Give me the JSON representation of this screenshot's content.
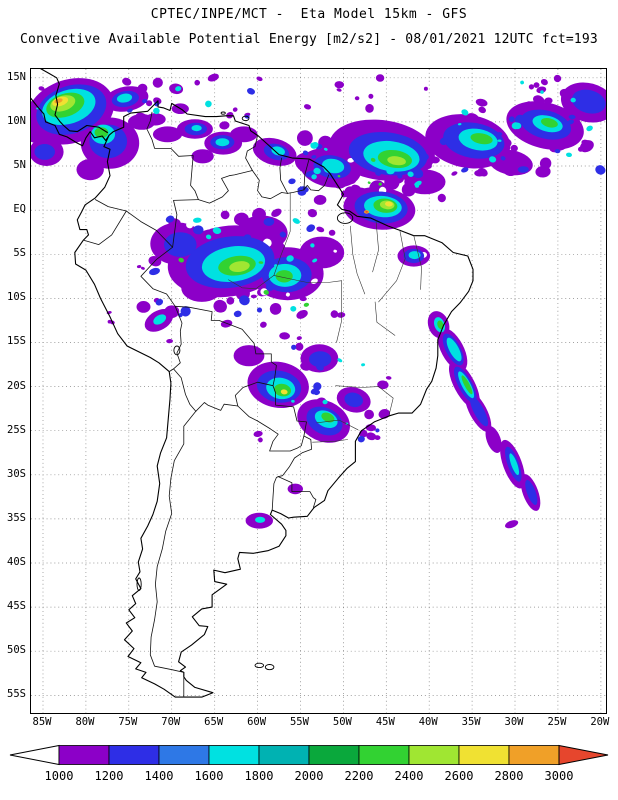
{
  "header": {
    "line1": "CPTEC/INPE/MCT -  Eta Model 15km - GFS",
    "line2": "Convective Available Potential Energy [m2/s2] - 08/01/2021 12UTC fct=193"
  },
  "map": {
    "lat_labels": [
      "15N",
      "10N",
      "5N",
      "EQ",
      "5S",
      "10S",
      "15S",
      "20S",
      "25S",
      "30S",
      "35S",
      "40S",
      "45S",
      "50S",
      "55S"
    ],
    "lon_labels": [
      "85W",
      "80W",
      "75W",
      "70W",
      "65W",
      "60W",
      "55W",
      "50W",
      "45W",
      "40W",
      "35W",
      "30W",
      "25W",
      "20W"
    ]
  },
  "colorbar": {
    "unit": "m2/s2",
    "tick_labels": [
      "1000",
      "1200",
      "1400",
      "1600",
      "1800",
      "2000",
      "2200",
      "2400",
      "2600",
      "2800",
      "3000"
    ],
    "segment_colors": [
      "#8C00C8",
      "#2E2EE6",
      "#2E78E6",
      "#00E1E1",
      "#00B2B2",
      "#0AA83C",
      "#32D232",
      "#A0E632",
      "#F0E132",
      "#F0A028"
    ],
    "left_arrow_color": "#FFFFFF",
    "right_arrow_color": "#E6462D"
  }
}
